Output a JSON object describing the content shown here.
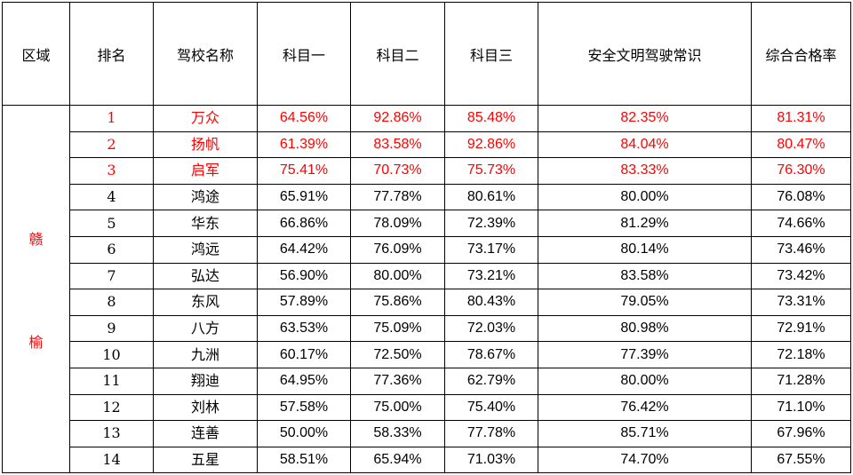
{
  "columns": [
    "区域",
    "排名",
    "驾校名称",
    "科目一",
    "科目二",
    "科目三",
    "安全文明驾驶常识",
    "综合合格率"
  ],
  "region": [
    "赣",
    "榆"
  ],
  "highlight_color": "#ff0000",
  "rows": [
    {
      "rank": "1",
      "name": "万众",
      "k1": "64.56%",
      "k2": "92.86%",
      "k3": "85.48%",
      "safety": "82.35%",
      "overall": "81.31%",
      "highlight": true
    },
    {
      "rank": "2",
      "name": "扬帆",
      "k1": "61.39%",
      "k2": "83.58%",
      "k3": "92.86%",
      "safety": "84.04%",
      "overall": "80.47%",
      "highlight": true
    },
    {
      "rank": "3",
      "name": "启军",
      "k1": "75.41%",
      "k2": "70.73%",
      "k3": "75.73%",
      "safety": "83.33%",
      "overall": "76.30%",
      "highlight": true
    },
    {
      "rank": "4",
      "name": "鸿途",
      "k1": "65.91%",
      "k2": "77.78%",
      "k3": "80.61%",
      "safety": "80.00%",
      "overall": "76.08%",
      "highlight": false
    },
    {
      "rank": "5",
      "name": "华东",
      "k1": "66.86%",
      "k2": "78.09%",
      "k3": "72.39%",
      "safety": "81.29%",
      "overall": "74.66%",
      "highlight": false
    },
    {
      "rank": "6",
      "name": "鸿远",
      "k1": "64.42%",
      "k2": "76.09%",
      "k3": "73.17%",
      "safety": "80.14%",
      "overall": "73.46%",
      "highlight": false
    },
    {
      "rank": "7",
      "name": "弘达",
      "k1": "56.90%",
      "k2": "80.00%",
      "k3": "73.21%",
      "safety": "83.58%",
      "overall": "73.42%",
      "highlight": false
    },
    {
      "rank": "8",
      "name": "东风",
      "k1": "57.89%",
      "k2": "75.86%",
      "k3": "80.43%",
      "safety": "79.05%",
      "overall": "73.31%",
      "highlight": false
    },
    {
      "rank": "9",
      "name": "八方",
      "k1": "63.53%",
      "k2": "75.09%",
      "k3": "72.03%",
      "safety": "80.98%",
      "overall": "72.91%",
      "highlight": false
    },
    {
      "rank": "10",
      "name": "九洲",
      "k1": "60.17%",
      "k2": "72.50%",
      "k3": "78.67%",
      "safety": "77.39%",
      "overall": "72.18%",
      "highlight": false
    },
    {
      "rank": "11",
      "name": "翔迪",
      "k1": "64.95%",
      "k2": "77.36%",
      "k3": "62.79%",
      "safety": "80.00%",
      "overall": "71.28%",
      "highlight": false
    },
    {
      "rank": "12",
      "name": "刘林",
      "k1": "57.58%",
      "k2": "75.00%",
      "k3": "75.40%",
      "safety": "76.42%",
      "overall": "71.10%",
      "highlight": false
    },
    {
      "rank": "13",
      "name": "连善",
      "k1": "50.00%",
      "k2": "58.33%",
      "k3": "77.78%",
      "safety": "85.71%",
      "overall": "67.96%",
      "highlight": false
    },
    {
      "rank": "14",
      "name": "五星",
      "k1": "58.51%",
      "k2": "65.94%",
      "k3": "71.03%",
      "safety": "74.70%",
      "overall": "67.55%",
      "highlight": false
    }
  ]
}
